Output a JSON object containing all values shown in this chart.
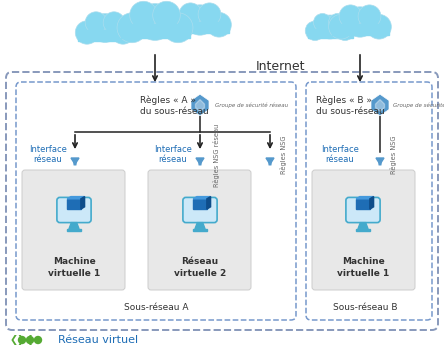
{
  "bg_color": "#ffffff",
  "border_color": "#8899bb",
  "subnet_border": "#7799cc",
  "vm_box_color": "#e8e8e8",
  "vm_box_edge": "#cccccc",
  "cloud_fill": "#87d8f0",
  "cloud_edge": "#aaddee",
  "arrow_color": "#222222",
  "shield_color": "#5599cc",
  "funnel_color": "#5599cc",
  "monitor_screen": "#cce8f8",
  "monitor_edge": "#44aacc",
  "cube_front": "#1e6db5",
  "cube_top": "#4499dd",
  "cube_right": "#0e4d8a",
  "text_dark": "#333333",
  "text_blue": "#1e6db5",
  "text_gray": "#666666",
  "vnet_dot": "#55aa33",
  "internet_label": "Internet",
  "subnet_a_label": "Sous-réseau A",
  "subnet_b_label": "Sous-réseau B",
  "vnet_label": "Réseau virtuel",
  "vm1_line1": "Machine",
  "vm1_line2": "virtuelle 1",
  "vm2_line1": "Réseau",
  "vm2_line2": "virtuelle 2",
  "vm3_line1": "Machine",
  "vm3_line2": "virtuelle 1",
  "rules_a_line1": "Règles « A »",
  "rules_a_line2": "du sous-réseau",
  "rules_b_line1": "Règles « B »",
  "rules_b_line2": "du sous-réseau",
  "nsg_small": "Groupe de sécurité réseau",
  "interface_line1": "Interface",
  "interface_line2": "réseau",
  "nsg_rules_reseau": "Règles NSG réseau",
  "nsg_rules": "Règles NSG"
}
